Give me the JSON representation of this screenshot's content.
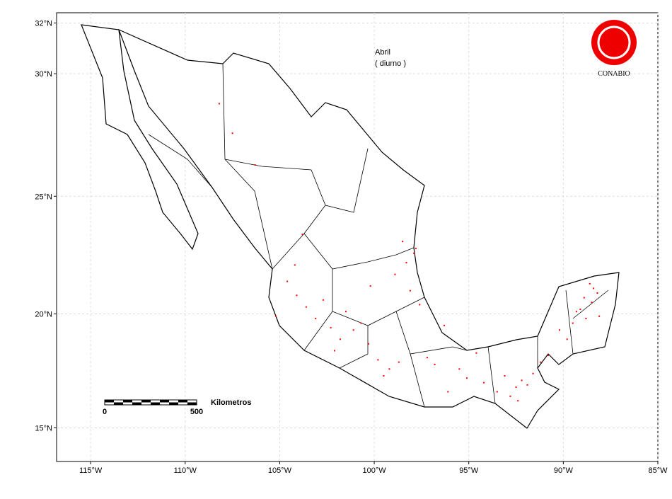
{
  "chart_data": {
    "type": "scatter",
    "title": "Abril",
    "subtitle": "( diurno )",
    "logo": "CONABIO",
    "scale_bar": {
      "label": "Kilometros",
      "ticks": [
        "0",
        "500"
      ]
    },
    "xlim": [
      -116.8,
      -85
    ],
    "ylim": [
      13.5,
      32.4
    ],
    "xticks": [
      {
        "value": -115,
        "label": "115°W"
      },
      {
        "value": -110,
        "label": "110°W"
      },
      {
        "value": -105,
        "label": "105°W"
      },
      {
        "value": -100,
        "label": "100°W"
      },
      {
        "value": -95,
        "label": "95°W"
      },
      {
        "value": -90,
        "label": "90°W"
      },
      {
        "value": -85,
        "label": "85°W"
      }
    ],
    "yticks": [
      {
        "value": 15,
        "label": "15°N"
      },
      {
        "value": 20,
        "label": "20°N"
      },
      {
        "value": 25,
        "label": "25°N"
      },
      {
        "value": 30,
        "label": "30°N"
      },
      {
        "value": 32,
        "label": "32°N"
      }
    ],
    "grid": true,
    "color": "#ff0000",
    "x": [
      -88.5,
      -88.2,
      -88.8,
      -89.1,
      -88.4,
      -89.5,
      -88.9,
      -88.1,
      -89.8,
      -90.2,
      -88.6,
      -89.3,
      -92.5,
      -92.2,
      -92.8,
      -91.9,
      -93.1,
      -92.4,
      -91.6,
      -93.5,
      -94.2,
      -95.1,
      -94.6,
      -96.8,
      -97.2,
      -96.3,
      -97.6,
      -98.1,
      -99.2,
      -99.8,
      -100.3,
      -101.1,
      -100.7,
      -101.8,
      -102.3,
      -103.1,
      -103.6,
      -102.7,
      -99.5,
      -98.7,
      -98.3,
      -97.8,
      -98.5,
      -97.9,
      -98.9,
      -104.1,
      -104.6,
      -105.2,
      -104.2,
      -103.8,
      -106.3,
      -107.5,
      -108.2,
      -101.5,
      -100.2,
      -102.1,
      -96.1,
      -95.5,
      -90.8,
      -91.2
    ],
    "y": [
      20.5,
      20.9,
      19.8,
      20.2,
      21.1,
      19.6,
      20.7,
      19.9,
      18.9,
      19.3,
      21.3,
      20.1,
      16.8,
      17.1,
      16.4,
      16.9,
      17.3,
      16.2,
      17.4,
      16.6,
      17.0,
      17.2,
      18.3,
      17.8,
      18.1,
      19.5,
      20.4,
      21.0,
      17.6,
      18.0,
      18.7,
      19.3,
      19.6,
      18.9,
      19.4,
      19.8,
      20.3,
      20.6,
      17.3,
      17.9,
      22.2,
      22.8,
      23.1,
      22.6,
      21.7,
      20.8,
      21.4,
      19.9,
      22.1,
      23.4,
      26.3,
      27.6,
      28.8,
      20.1,
      21.2,
      18.4,
      16.6,
      17.6,
      18.2,
      17.9
    ]
  }
}
